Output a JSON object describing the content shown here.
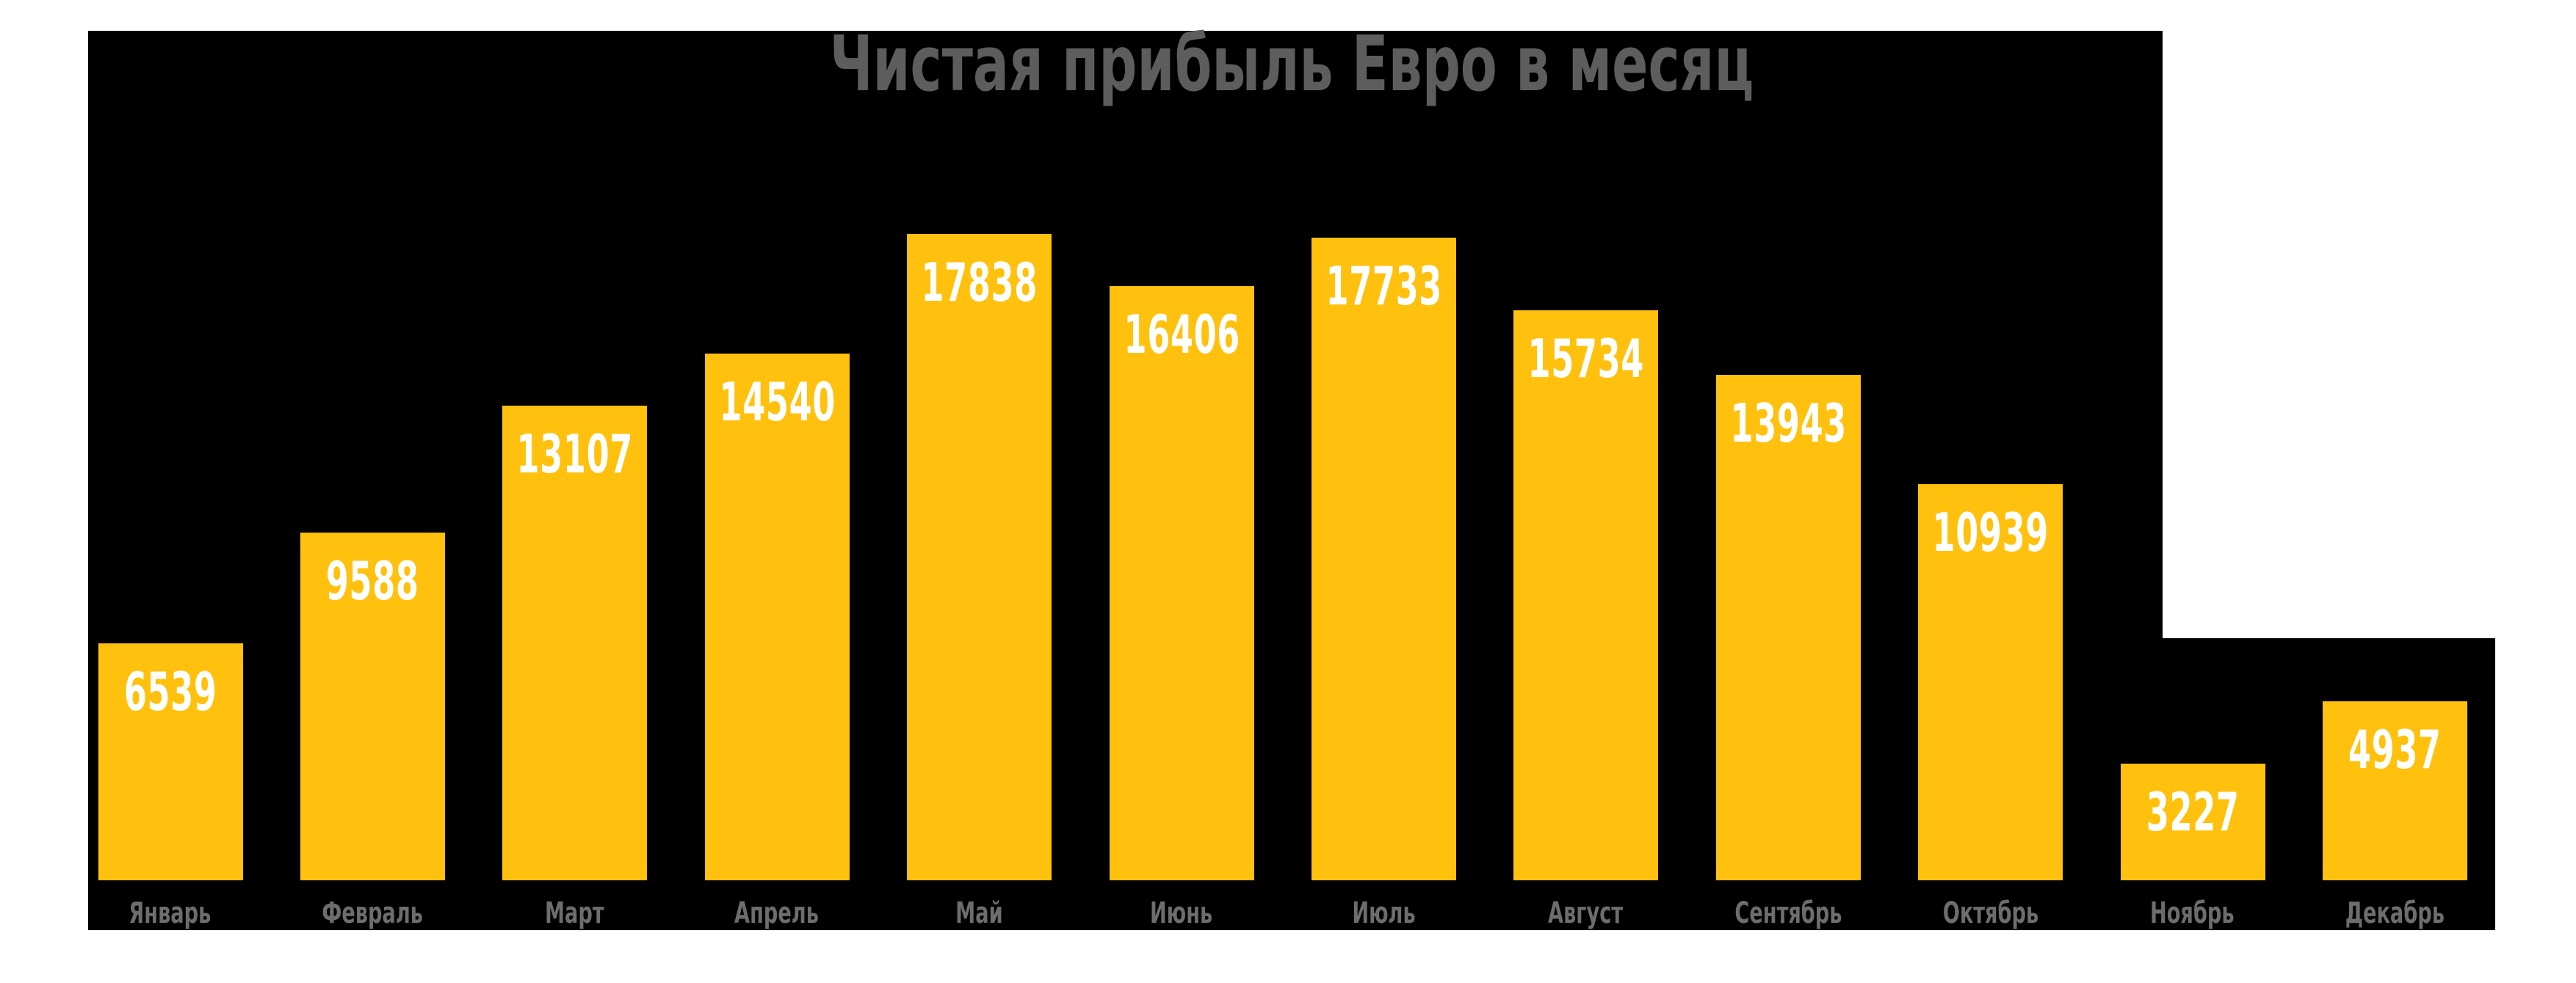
{
  "title": "Чистая прибыль Евро в месяц",
  "chart_data": {
    "type": "bar",
    "title": "Чистая прибыль Евро в месяц",
    "categories": [
      "Январь",
      "Февраль",
      "Март",
      "Апрель",
      "Май",
      "Июнь",
      "Июль",
      "Август",
      "Сентябрь",
      "Октябрь",
      "Ноябрь",
      "Декабрь"
    ],
    "values": [
      6539,
      9588,
      13107,
      14540,
      17838,
      16406,
      17733,
      15734,
      13943,
      10939,
      3227,
      4937
    ],
    "xlabel": "",
    "ylabel": "",
    "ylim": [
      0,
      17838
    ],
    "grid": false,
    "legend": false,
    "value_labels_shown": true,
    "axis_ticks_shown": false
  },
  "colors": {
    "bar_fill": "#FFC10D",
    "value_label": "#FFFFFF",
    "title_text": "#5D5D5D",
    "month_label_text": "#6D6D6D",
    "plot_background": "#000000",
    "page_background": "#FFFFFF"
  }
}
